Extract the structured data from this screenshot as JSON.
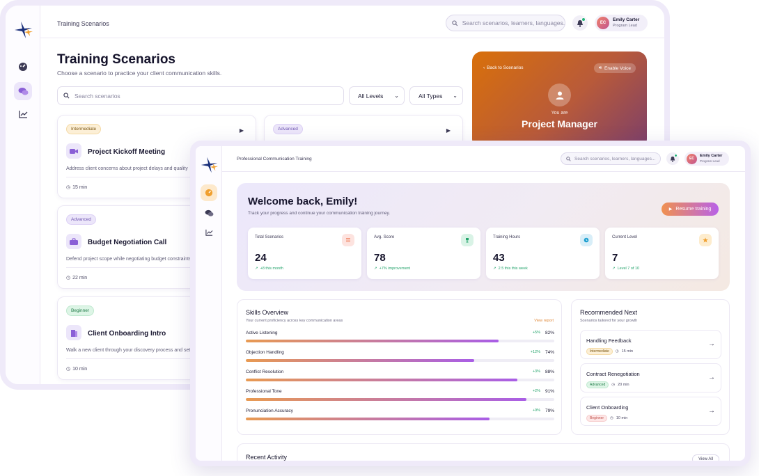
{
  "back_window": {
    "header": {
      "title": "Training Scenarios",
      "search_placeholder": "Search scenarios, learners, languages...",
      "user": {
        "initials": "EC",
        "name": "Emily Carter",
        "role": "Program Lead"
      }
    },
    "page": {
      "title": "Training Scenarios",
      "subtitle": "Choose a scenario to practice your client communication skills.",
      "search_placeholder": "Search scenarios",
      "level_filter": "All Levels",
      "type_filter": "All Types"
    },
    "scenarios": [
      {
        "badge": "Intermediate",
        "title": "Project Kickoff Meeting",
        "description": "Address client concerns about project delays and quality",
        "duration": "15 min"
      },
      {
        "badge": "Advanced",
        "title": "",
        "description": "",
        "duration": ""
      },
      {
        "badge": "Advanced",
        "title": "Budget Negotiation Call",
        "description": "Defend project scope while negotiating budget constraints",
        "duration": "22 min"
      },
      {
        "badge": "Beginner",
        "title": "Client Onboarding Intro",
        "description": "Walk a new client through your discovery process and set",
        "duration": "10 min"
      }
    ],
    "role_card": {
      "back_label": "Back to Scenarios",
      "voice_label": "Enable Voice",
      "you_are": "You are",
      "role": "Project Manager"
    }
  },
  "front_window": {
    "header": {
      "title": "Professional Communication Training",
      "search_placeholder": "Search scenarios, learners, languages...",
      "user": {
        "initials": "EC",
        "name": "Emily Carter",
        "role": "Program Lead"
      }
    },
    "welcome": {
      "title": "Welcome back, Emily!",
      "subtitle": "Track your progress and continue your communication training journey.",
      "resume_label": "Resume training"
    },
    "stats": [
      {
        "label": "Total Scenarios",
        "value": "24",
        "delta": "+8 this month",
        "icon": "list-icon",
        "color": "#f08a6a"
      },
      {
        "label": "Avg. Score",
        "value": "78",
        "delta": "+7% improvement",
        "icon": "trophy-icon",
        "color": "#23a36b"
      },
      {
        "label": "Training Hours",
        "value": "43",
        "delta": "2.5 this this week",
        "icon": "clock-icon",
        "color": "#1c9fd0"
      },
      {
        "label": "Current Level",
        "value": "7",
        "delta": "Level 7 of 10",
        "icon": "star-icon",
        "color": "#f0a030"
      }
    ],
    "skills": {
      "title": "Skills Overview",
      "subtitle": "Your current proficiency across key communication areas",
      "link": "View report",
      "items": [
        {
          "name": "Active Listening",
          "delta": "+5%",
          "pct": "82%",
          "value": 0.82
        },
        {
          "name": "Objection Handling",
          "delta": "+12%",
          "pct": "74%",
          "value": 0.74
        },
        {
          "name": "Conflict Resolution",
          "delta": "+3%",
          "pct": "88%",
          "value": 0.88
        },
        {
          "name": "Professional Tone",
          "delta": "+2%",
          "pct": "91%",
          "value": 0.91
        },
        {
          "name": "Pronunciation Accuracy",
          "delta": "+9%",
          "pct": "79%",
          "value": 0.79
        }
      ]
    },
    "recommended": {
      "title": "Recommended Next",
      "subtitle": "Scenarios tailored for your growth",
      "items": [
        {
          "name": "Handling Feedback",
          "badge": "Intermediate",
          "duration": "15 min"
        },
        {
          "name": "Contract Renegotiation",
          "badge": "Advanced",
          "duration": "20 min"
        },
        {
          "name": "Client Onboarding",
          "badge": "Beginner",
          "duration": "10 min"
        }
      ]
    },
    "activity": {
      "title": "Recent Activity",
      "view_all": "View All"
    }
  }
}
